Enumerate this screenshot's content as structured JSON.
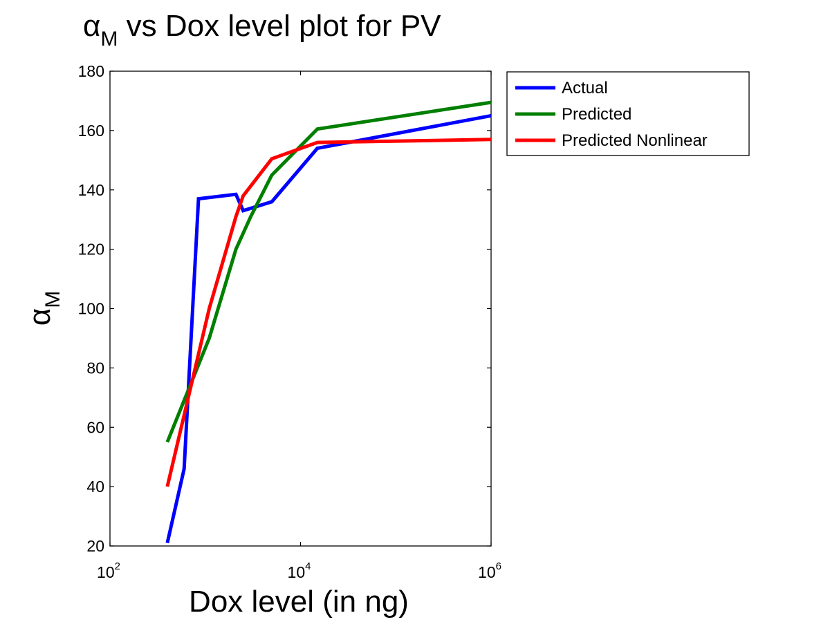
{
  "chart_data": {
    "type": "line",
    "title": {
      "symbol": "α",
      "subscript": "M",
      "rest": " vs Dox level plot for PV"
    },
    "xlabel": "Dox level (in ng)",
    "ylabel": {
      "symbol": "α",
      "subscript": "M"
    },
    "xscale": "log",
    "xlim": [
      100,
      1000000
    ],
    "ylim": [
      20,
      180
    ],
    "xticks": [
      {
        "value": 100,
        "base": "10",
        "exp": "2"
      },
      {
        "value": 10000,
        "base": "10",
        "exp": "4"
      },
      {
        "value": 1000000,
        "base": "10",
        "exp": "6"
      }
    ],
    "yticks": [
      20,
      40,
      60,
      80,
      100,
      120,
      140,
      160,
      180
    ],
    "grid": false,
    "legend_position": "outside-top-right",
    "series": [
      {
        "name": "Actual",
        "color": "#0000ff",
        "points": [
          [
            400,
            21
          ],
          [
            600,
            46
          ],
          [
            850,
            137
          ],
          [
            2100,
            138.5
          ],
          [
            2500,
            133
          ],
          [
            5000,
            136
          ],
          [
            15000,
            154
          ],
          [
            1000000,
            165
          ]
        ]
      },
      {
        "name": "Predicted",
        "color": "#007f00",
        "points": [
          [
            400,
            55
          ],
          [
            1100,
            90
          ],
          [
            2100,
            120
          ],
          [
            3000,
            131
          ],
          [
            5000,
            145
          ],
          [
            15000,
            160.5
          ],
          [
            1000000,
            169.5
          ]
        ]
      },
      {
        "name": "Predicted Nonlinear",
        "color": "#ff0000",
        "points": [
          [
            400,
            40
          ],
          [
            1100,
            100
          ],
          [
            2100,
            131
          ],
          [
            2500,
            138
          ],
          [
            5000,
            150.5
          ],
          [
            15000,
            156
          ],
          [
            1000000,
            157
          ]
        ]
      }
    ]
  }
}
